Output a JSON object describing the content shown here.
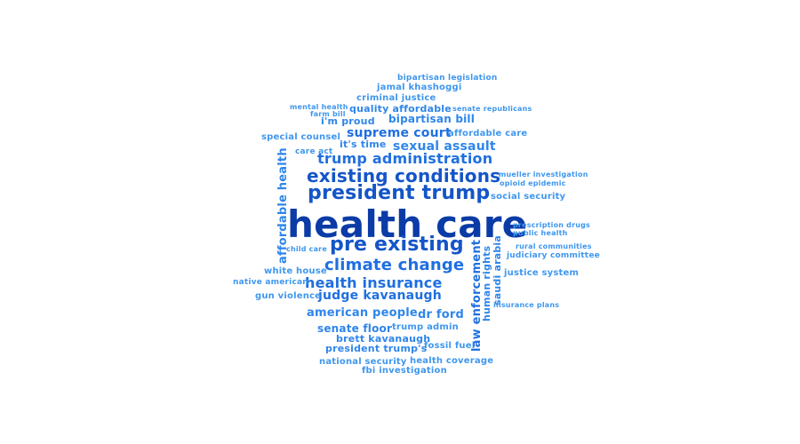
{
  "words": [
    {
      "id": "health-care",
      "text": "health care"
    },
    {
      "id": "president-trump",
      "text": "president trump"
    },
    {
      "id": "existing-conditions",
      "text": "existing conditions"
    },
    {
      "id": "pre-existing",
      "text": "pre existing"
    },
    {
      "id": "climate-change",
      "text": "climate change"
    },
    {
      "id": "health-insurance",
      "text": "health insurance"
    },
    {
      "id": "trump-administration",
      "text": "trump administration"
    },
    {
      "id": "judge-kavanaugh",
      "text": "judge kavanaugh"
    },
    {
      "id": "supreme-court",
      "text": "supreme court"
    },
    {
      "id": "sexual-assault",
      "text": "sexual assault"
    },
    {
      "id": "american-people",
      "text": "american people"
    },
    {
      "id": "dr-ford",
      "text": "dr ford"
    },
    {
      "id": "bipartisan-bill",
      "text": "bipartisan bill"
    },
    {
      "id": "quality-affordable",
      "text": "quality affordable"
    },
    {
      "id": "im-proud",
      "text": "i'm proud"
    },
    {
      "id": "its-time",
      "text": "it's time"
    },
    {
      "id": "criminal-justice",
      "text": "criminal justice"
    },
    {
      "id": "jamal-khashoggi",
      "text": "jamal khashoggi"
    },
    {
      "id": "bipartisan-legislation",
      "text": "bipartisan legislation"
    },
    {
      "id": "mental-health",
      "text": "mental health"
    },
    {
      "id": "farm-bill",
      "text": "farm bill"
    },
    {
      "id": "senate-republicans",
      "text": "senate republicans"
    },
    {
      "id": "special-counsel",
      "text": "special counsel"
    },
    {
      "id": "affordable-care",
      "text": "affordable care"
    },
    {
      "id": "care-act",
      "text": "care act"
    },
    {
      "id": "mueller-investigation",
      "text": "mueller investigation"
    },
    {
      "id": "opioid-epidemic",
      "text": "opioid epidemic"
    },
    {
      "id": "social-security",
      "text": "social security"
    },
    {
      "id": "prescription-drugs",
      "text": "prescription drugs"
    },
    {
      "id": "public-health",
      "text": "public health"
    },
    {
      "id": "child-care",
      "text": "child care"
    },
    {
      "id": "rural-communities",
      "text": "rural communities"
    },
    {
      "id": "judiciary-committee",
      "text": "judiciary committee"
    },
    {
      "id": "white-house",
      "text": "white house"
    },
    {
      "id": "justice-system",
      "text": "justice system"
    },
    {
      "id": "native-american",
      "text": "native american"
    },
    {
      "id": "gun-violence",
      "text": "gun violence"
    },
    {
      "id": "insurance-plans",
      "text": "insurance plans"
    },
    {
      "id": "senate-floor",
      "text": "senate floor"
    },
    {
      "id": "trump-admin",
      "text": "trump admin"
    },
    {
      "id": "brett-kavanaugh",
      "text": "brett kavanaugh"
    },
    {
      "id": "fossil-fuel",
      "text": "fossil fuel"
    },
    {
      "id": "president-trumps",
      "text": "president trump's"
    },
    {
      "id": "national-security",
      "text": "national security"
    },
    {
      "id": "health-coverage",
      "text": "health coverage"
    },
    {
      "id": "fbi-investigation",
      "text": "fbi investigation"
    },
    {
      "id": "affordable-health",
      "text": "affordable health"
    },
    {
      "id": "law-enforcement",
      "text": "law enforcement"
    },
    {
      "id": "human-rights",
      "text": "human rights"
    },
    {
      "id": "saudi-arabia",
      "text": "saudi arabia"
    }
  ]
}
